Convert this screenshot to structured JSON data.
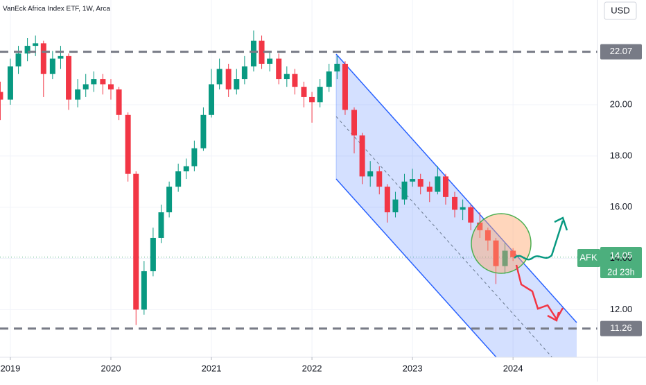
{
  "chart_data": {
    "type": "candlestick",
    "title": "VanEck Africa Index ETF, 1W, Arca",
    "currency": "USD",
    "symbol": "AFK",
    "last_price": 14.05,
    "countdown": "2d 23h",
    "levels": [
      22.07,
      11.26
    ],
    "x": [
      2018.9,
      2019.0,
      2019.08,
      2019.17,
      2019.25,
      2019.33,
      2019.42,
      2019.5,
      2019.58,
      2019.67,
      2019.75,
      2019.83,
      2019.92,
      2020.0,
      2020.08,
      2020.17,
      2020.25,
      2020.33,
      2020.42,
      2020.5,
      2020.58,
      2020.67,
      2020.75,
      2020.83,
      2020.92,
      2021.0,
      2021.08,
      2021.17,
      2021.25,
      2021.33,
      2021.42,
      2021.5,
      2021.58,
      2021.67,
      2021.75,
      2021.83,
      2021.92,
      2022.0,
      2022.08,
      2022.17,
      2022.25,
      2022.33,
      2022.42,
      2022.5,
      2022.58,
      2022.67,
      2022.75,
      2022.83,
      2022.92,
      2023.0,
      2023.08,
      2023.17,
      2023.25,
      2023.33,
      2023.42,
      2023.5,
      2023.58,
      2023.67,
      2023.75,
      2023.83,
      2023.92,
      2024.0
    ],
    "open": [
      20.5,
      20.2,
      21.5,
      22.0,
      22.3,
      22.4,
      21.2,
      21.8,
      21.9,
      20.2,
      20.6,
      20.8,
      21.0,
      20.8,
      20.6,
      19.6,
      17.3,
      12.0,
      13.5,
      14.8,
      15.8,
      16.8,
      17.4,
      17.6,
      18.3,
      19.6,
      20.8,
      21.4,
      20.6,
      21.0,
      21.5,
      22.5,
      21.6,
      21.8,
      21.0,
      21.2,
      20.7,
      20.3,
      20.1,
      20.7,
      21.3,
      21.6,
      19.8,
      18.8,
      17.2,
      17.4,
      16.8,
      15.8,
      16.3,
      17.0,
      17.1,
      16.8,
      16.6,
      17.2,
      16.4,
      15.9,
      16.0,
      15.4,
      15.1,
      14.7,
      13.7,
      14.3
    ],
    "high": [
      20.9,
      21.8,
      22.3,
      22.6,
      22.7,
      22.5,
      22.1,
      22.3,
      22.0,
      21.0,
      21.2,
      21.3,
      21.2,
      21.0,
      20.7,
      19.7,
      17.4,
      13.9,
      15.2,
      16.1,
      17.0,
      17.7,
      17.9,
      18.6,
      19.9,
      21.4,
      21.8,
      21.6,
      21.4,
      21.9,
      22.9,
      22.7,
      22.1,
      22.0,
      21.5,
      21.4,
      20.9,
      20.5,
      21.0,
      21.6,
      21.9,
      21.7,
      19.9,
      18.9,
      17.8,
      17.6,
      16.9,
      16.6,
      17.3,
      17.5,
      17.3,
      17.0,
      17.6,
      17.3,
      16.6,
      16.3,
      16.1,
      15.8,
      15.2,
      14.8,
      14.6,
      14.4
    ],
    "low": [
      19.4,
      20.0,
      21.2,
      21.7,
      21.9,
      20.3,
      21.0,
      21.4,
      19.8,
      19.9,
      20.3,
      20.5,
      20.4,
      20.2,
      19.4,
      17.0,
      11.4,
      11.8,
      13.3,
      14.6,
      15.6,
      16.6,
      17.1,
      17.4,
      18.2,
      19.5,
      20.6,
      20.3,
      20.4,
      20.8,
      21.3,
      21.4,
      21.3,
      20.8,
      20.7,
      20.4,
      19.9,
      19.3,
      19.9,
      20.5,
      21.0,
      19.6,
      18.1,
      16.9,
      16.8,
      16.5,
      15.4,
      15.6,
      16.1,
      16.8,
      16.5,
      16.2,
      16.5,
      16.1,
      15.6,
      15.5,
      15.1,
      14.8,
      14.3,
      13.0,
      13.4,
      13.9
    ],
    "close": [
      20.2,
      21.5,
      22.0,
      22.3,
      22.4,
      21.2,
      21.8,
      21.9,
      20.2,
      20.6,
      20.8,
      21.0,
      20.8,
      20.6,
      19.6,
      17.3,
      12.0,
      13.5,
      14.8,
      15.8,
      16.8,
      17.4,
      17.6,
      18.3,
      19.6,
      20.8,
      21.4,
      20.6,
      21.0,
      21.5,
      22.5,
      21.6,
      21.8,
      21.0,
      21.2,
      20.7,
      20.3,
      20.1,
      20.7,
      21.3,
      21.6,
      19.8,
      18.8,
      17.2,
      17.4,
      16.8,
      15.8,
      16.3,
      17.0,
      17.1,
      16.8,
      16.6,
      17.2,
      16.4,
      15.9,
      16.0,
      15.4,
      15.1,
      14.7,
      13.7,
      14.3,
      14.05
    ],
    "up_color": "#089981",
    "down_color": "#f23645",
    "xlim": [
      2018.897,
      2024.84
    ],
    "xticks": [
      2019,
      2020,
      2021,
      2022,
      2023,
      2024
    ],
    "ylim": [
      10.14,
      24.09
    ],
    "yticks": [
      {
        "value": 12,
        "label": "12.00"
      },
      {
        "value": 14,
        "label": "14.00"
      },
      {
        "value": 16,
        "label": "16.00"
      },
      {
        "value": 18,
        "label": "18.00"
      },
      {
        "value": 20,
        "label": "20.00"
      }
    ],
    "grid": true
  }
}
